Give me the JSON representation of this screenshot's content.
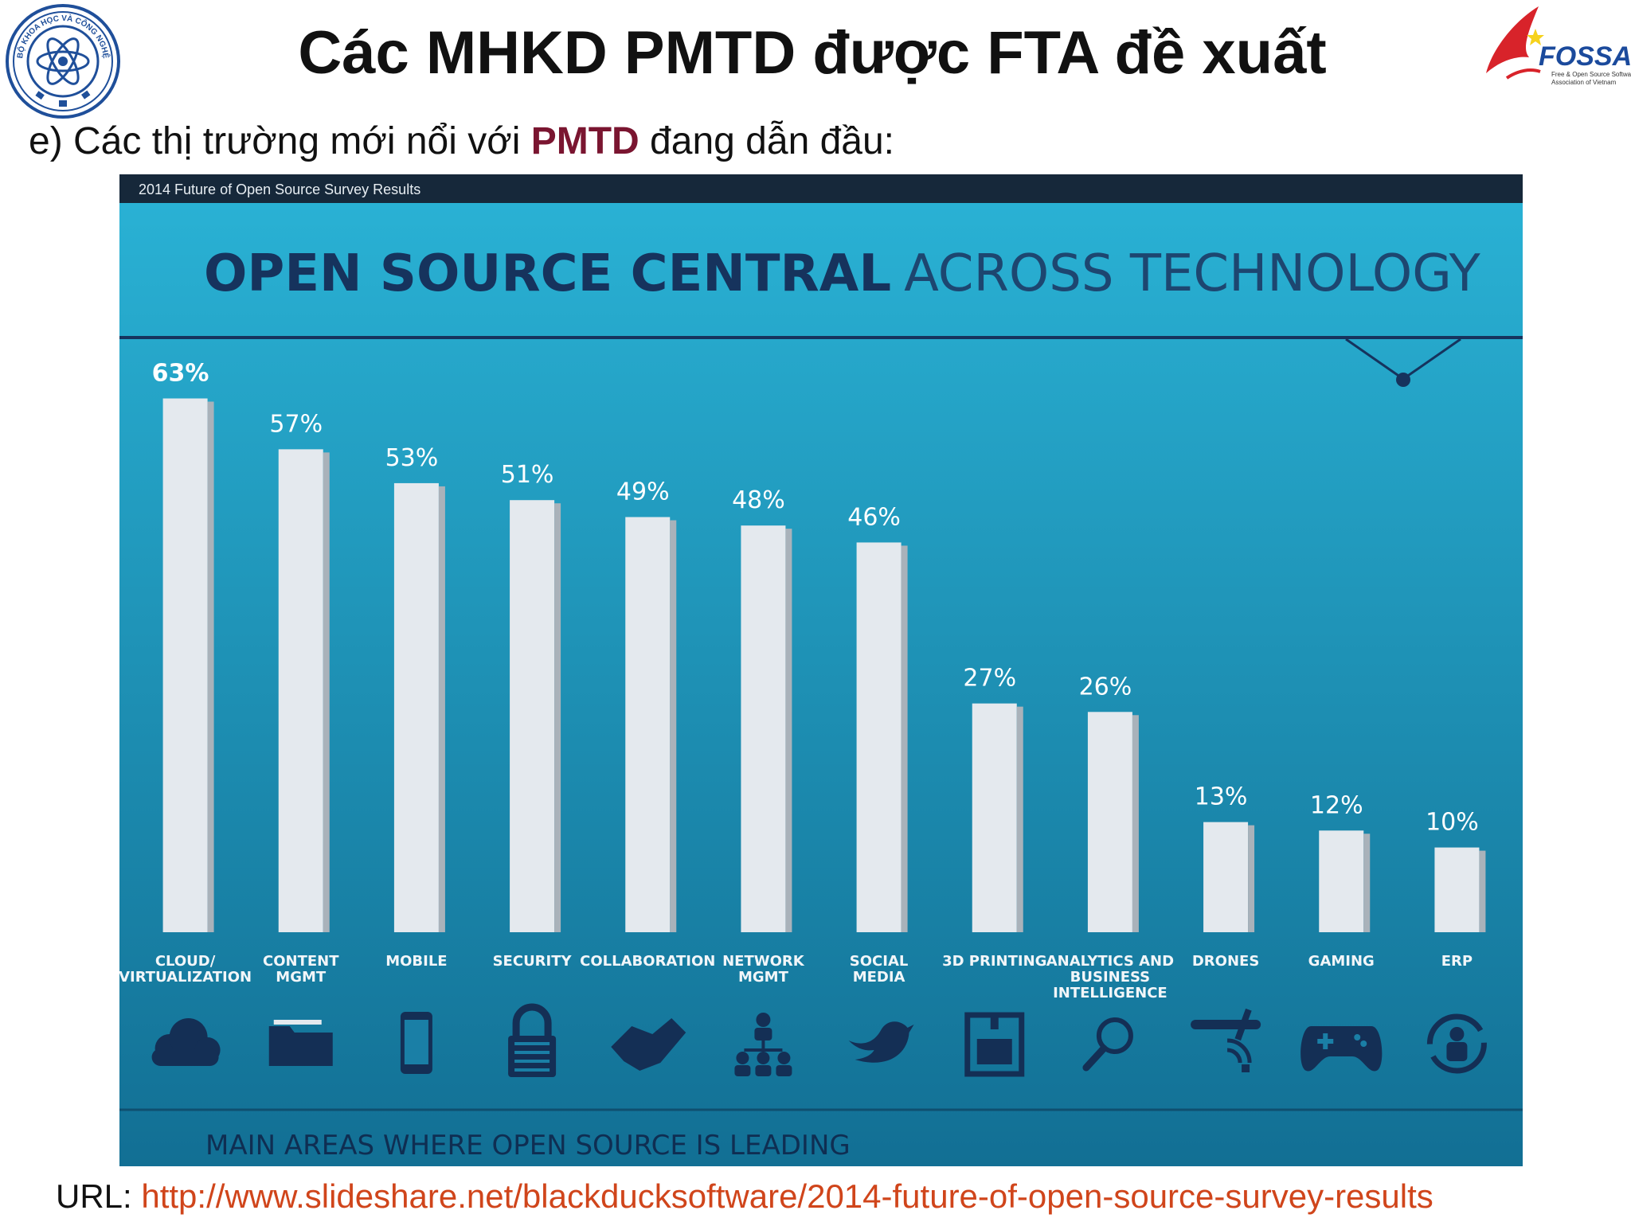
{
  "slide": {
    "title": "Các MHKD PMTD được FTA đề xuất",
    "subtitle_prefix": "e) Các thị trường mới nổi với ",
    "subtitle_highlight": "PMTD",
    "subtitle_suffix": " đang dẫn đầu:",
    "url_label": "URL: ",
    "url_link": "http://www.slideshare.net/blackducksoftware/2014-future-of-open-source-survey-results",
    "left_logo_text": "BỘ KHOA HỌC VÀ CÔNG NGHỆ",
    "right_logo_name": "FOSSA",
    "right_logo_tagline_1": "Free & Open Source Software",
    "right_logo_tagline_2": "Association of Vietnam"
  },
  "colors": {
    "panel_top": "#2ab3d6",
    "panel_bottom": "#126f94",
    "header_bar": "#16283a",
    "bar_face": "#e4e9ee",
    "bar_shade": "#a9b2ba",
    "title_bold": "#16335d",
    "title_light": "#1d4670",
    "value_label": "#ffffff",
    "icon": "#142f55",
    "subtitle_highlight": "#7a1530",
    "url_link": "#d0451b"
  },
  "chart_data": {
    "type": "bar",
    "header": "2014 Future of Open Source Survey Results",
    "title_bold": "OPEN SOURCE CENTRAL",
    "title_light": "ACROSS TECHNOLOGY",
    "footer": "MAIN AREAS WHERE OPEN SOURCE IS LEADING",
    "unit": "%",
    "ylim": [
      0,
      63
    ],
    "grid": false,
    "categories": [
      {
        "lines": [
          "CLOUD/",
          "VIRTUALIZATION"
        ],
        "value": 63,
        "label": "63%",
        "icon": "cloud-icon"
      },
      {
        "lines": [
          "CONTENT",
          "MGMT"
        ],
        "value": 57,
        "label": "57%",
        "icon": "folder-icon"
      },
      {
        "lines": [
          "MOBILE"
        ],
        "value": 53,
        "label": "53%",
        "icon": "mobile-phone-icon"
      },
      {
        "lines": [
          "SECURITY"
        ],
        "value": 51,
        "label": "51%",
        "icon": "padlock-icon"
      },
      {
        "lines": [
          "COLLABORATION"
        ],
        "value": 49,
        "label": "49%",
        "icon": "handshake-icon"
      },
      {
        "lines": [
          "NETWORK",
          "MGMT"
        ],
        "value": 48,
        "label": "48%",
        "icon": "network-people-icon"
      },
      {
        "lines": [
          "SOCIAL",
          "MEDIA"
        ],
        "value": 46,
        "label": "46%",
        "icon": "bird-icon"
      },
      {
        "lines": [
          "3D PRINTING"
        ],
        "value": 27,
        "label": "27%",
        "icon": "printer-3d-icon"
      },
      {
        "lines": [
          "ANALYTICS AND",
          "BUSINESS",
          "INTELLIGENCE"
        ],
        "value": 26,
        "label": "26%",
        "icon": "magnifier-icon"
      },
      {
        "lines": [
          "DRONES"
        ],
        "value": 13,
        "label": "13%",
        "icon": "drone-icon"
      },
      {
        "lines": [
          "GAMING"
        ],
        "value": 12,
        "label": "12%",
        "icon": "gamepad-icon"
      },
      {
        "lines": [
          "ERP"
        ],
        "value": 10,
        "label": "10%",
        "icon": "erp-cycle-icon"
      }
    ]
  }
}
